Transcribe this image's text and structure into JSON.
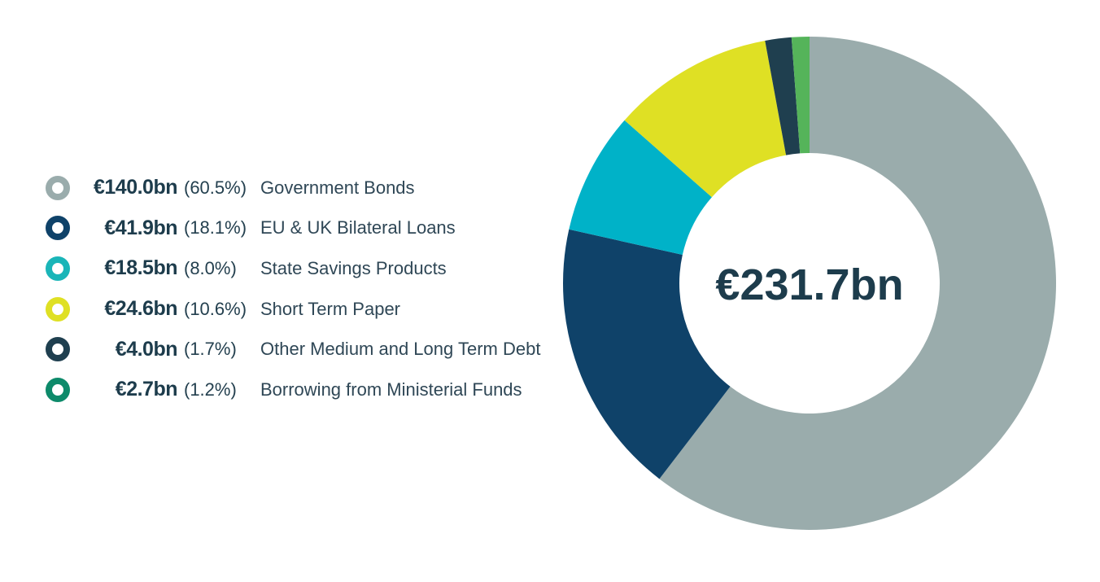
{
  "chart_data": {
    "type": "pie",
    "donut": true,
    "center_label": "€231.7bn",
    "legend_position": "left",
    "slices": [
      {
        "name": "Government Bonds",
        "value_label": "€140.0bn",
        "pct_label": "(60.5%)",
        "value": 140.0,
        "color": "#9aacac",
        "marker_color": "#9aacac"
      },
      {
        "name": "EU & UK Bilateral Loans",
        "value_label": "€41.9bn",
        "pct_label": "(18.1%)",
        "value": 41.9,
        "color": "#0f4269",
        "marker_color": "#0f4269"
      },
      {
        "name": "State Savings Products",
        "value_label": "€18.5bn",
        "pct_label": "(8.0%)",
        "value": 18.5,
        "color": "#00b2c8",
        "marker_color": "#1ab5b8"
      },
      {
        "name": "Short Term Paper",
        "value_label": "€24.6bn",
        "pct_label": "(10.6%)",
        "value": 24.6,
        "color": "#dfe024",
        "marker_color": "#dfe024"
      },
      {
        "name": "Other Medium and Long Term Debt",
        "value_label": "€4.0bn",
        "pct_label": "(1.7%)",
        "value": 4.0,
        "color": "#1f3f4f",
        "marker_color": "#1f3f4f"
      },
      {
        "name": "Borrowing from Ministerial Funds",
        "value_label": "€2.7bn",
        "pct_label": "(1.2%)",
        "value": 2.7,
        "color": "#55b45a",
        "marker_color": "#0d8a6a"
      }
    ]
  }
}
